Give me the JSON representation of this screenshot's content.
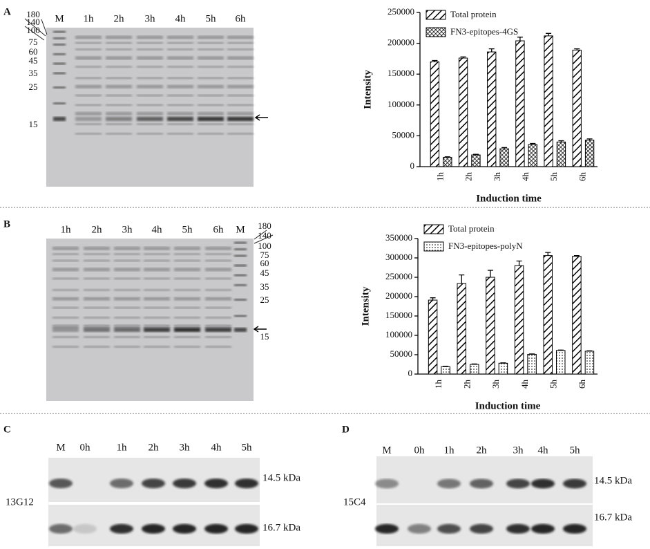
{
  "chart_data": [
    {
      "type": "bar",
      "y_label": "Intensity",
      "x_label": "Induction time",
      "categories": [
        "1h",
        "2h",
        "3h",
        "4h",
        "5h",
        "6h"
      ],
      "ylim": [
        0,
        250000
      ],
      "yticks": [
        0,
        50000,
        100000,
        150000,
        200000,
        250000
      ],
      "series": [
        {
          "name": "Total protein",
          "pattern": "hatch",
          "color": "#000000",
          "values": [
            170000,
            176000,
            186000,
            204000,
            212000,
            189000
          ],
          "errors": [
            2000,
            2000,
            5000,
            6000,
            4000,
            2000
          ]
        },
        {
          "name": "FN3-epitopes-4GS",
          "pattern": "crosshatch",
          "color": "#000000",
          "values": [
            15000,
            19000,
            29000,
            36000,
            40000,
            43000
          ],
          "errors": [
            1000,
            1000,
            2000,
            1500,
            2000,
            2000
          ]
        }
      ]
    },
    {
      "type": "bar",
      "y_label": "Intensity",
      "x_label": "Induction time",
      "categories": [
        "1h",
        "2h",
        "3h",
        "4h",
        "5h",
        "6h"
      ],
      "ylim": [
        0,
        350000
      ],
      "yticks": [
        0,
        50000,
        100000,
        150000,
        200000,
        250000,
        300000,
        350000
      ],
      "series": [
        {
          "name": "Total protein",
          "pattern": "hatch",
          "color": "#000000",
          "values": [
            191000,
            234000,
            250000,
            280000,
            306000,
            304000
          ],
          "errors": [
            6000,
            22000,
            18000,
            12000,
            8000,
            2000
          ]
        },
        {
          "name": "FN3-epitopes-polyN",
          "pattern": "dots",
          "color": "#000000",
          "values": [
            19000,
            25000,
            28000,
            51000,
            61000,
            59000
          ],
          "errors": [
            1000,
            1000,
            1000,
            1000,
            1000,
            1000
          ]
        }
      ]
    }
  ],
  "panels": [
    {
      "letter": "A",
      "lanes": [
        "M",
        "1h",
        "2h",
        "3h",
        "4h",
        "5h",
        "6h"
      ],
      "markers": [
        "180",
        "140",
        "100",
        "75",
        "60",
        "45",
        "35",
        "25",
        "15"
      ]
    },
    {
      "letter": "B",
      "lanes": [
        "1h",
        "2h",
        "3h",
        "4h",
        "5h",
        "6h",
        "M"
      ],
      "markers": [
        "180",
        "140",
        "100",
        "75",
        "60",
        "45",
        "35",
        "25",
        "15"
      ]
    },
    {
      "letter": "C",
      "lanes": [
        "M",
        "0h",
        "1h",
        "2h",
        "3h",
        "4h",
        "5h"
      ],
      "antibody": "13G12",
      "bands": [
        "14.5 kDa",
        "16.7 kDa"
      ]
    },
    {
      "letter": "D",
      "lanes": [
        "M",
        "0h",
        "1h",
        "2h",
        "3h",
        "4h",
        "5h"
      ],
      "antibody": "15C4",
      "bands": [
        "14.5 kDa",
        "16.7 kDa"
      ]
    }
  ]
}
